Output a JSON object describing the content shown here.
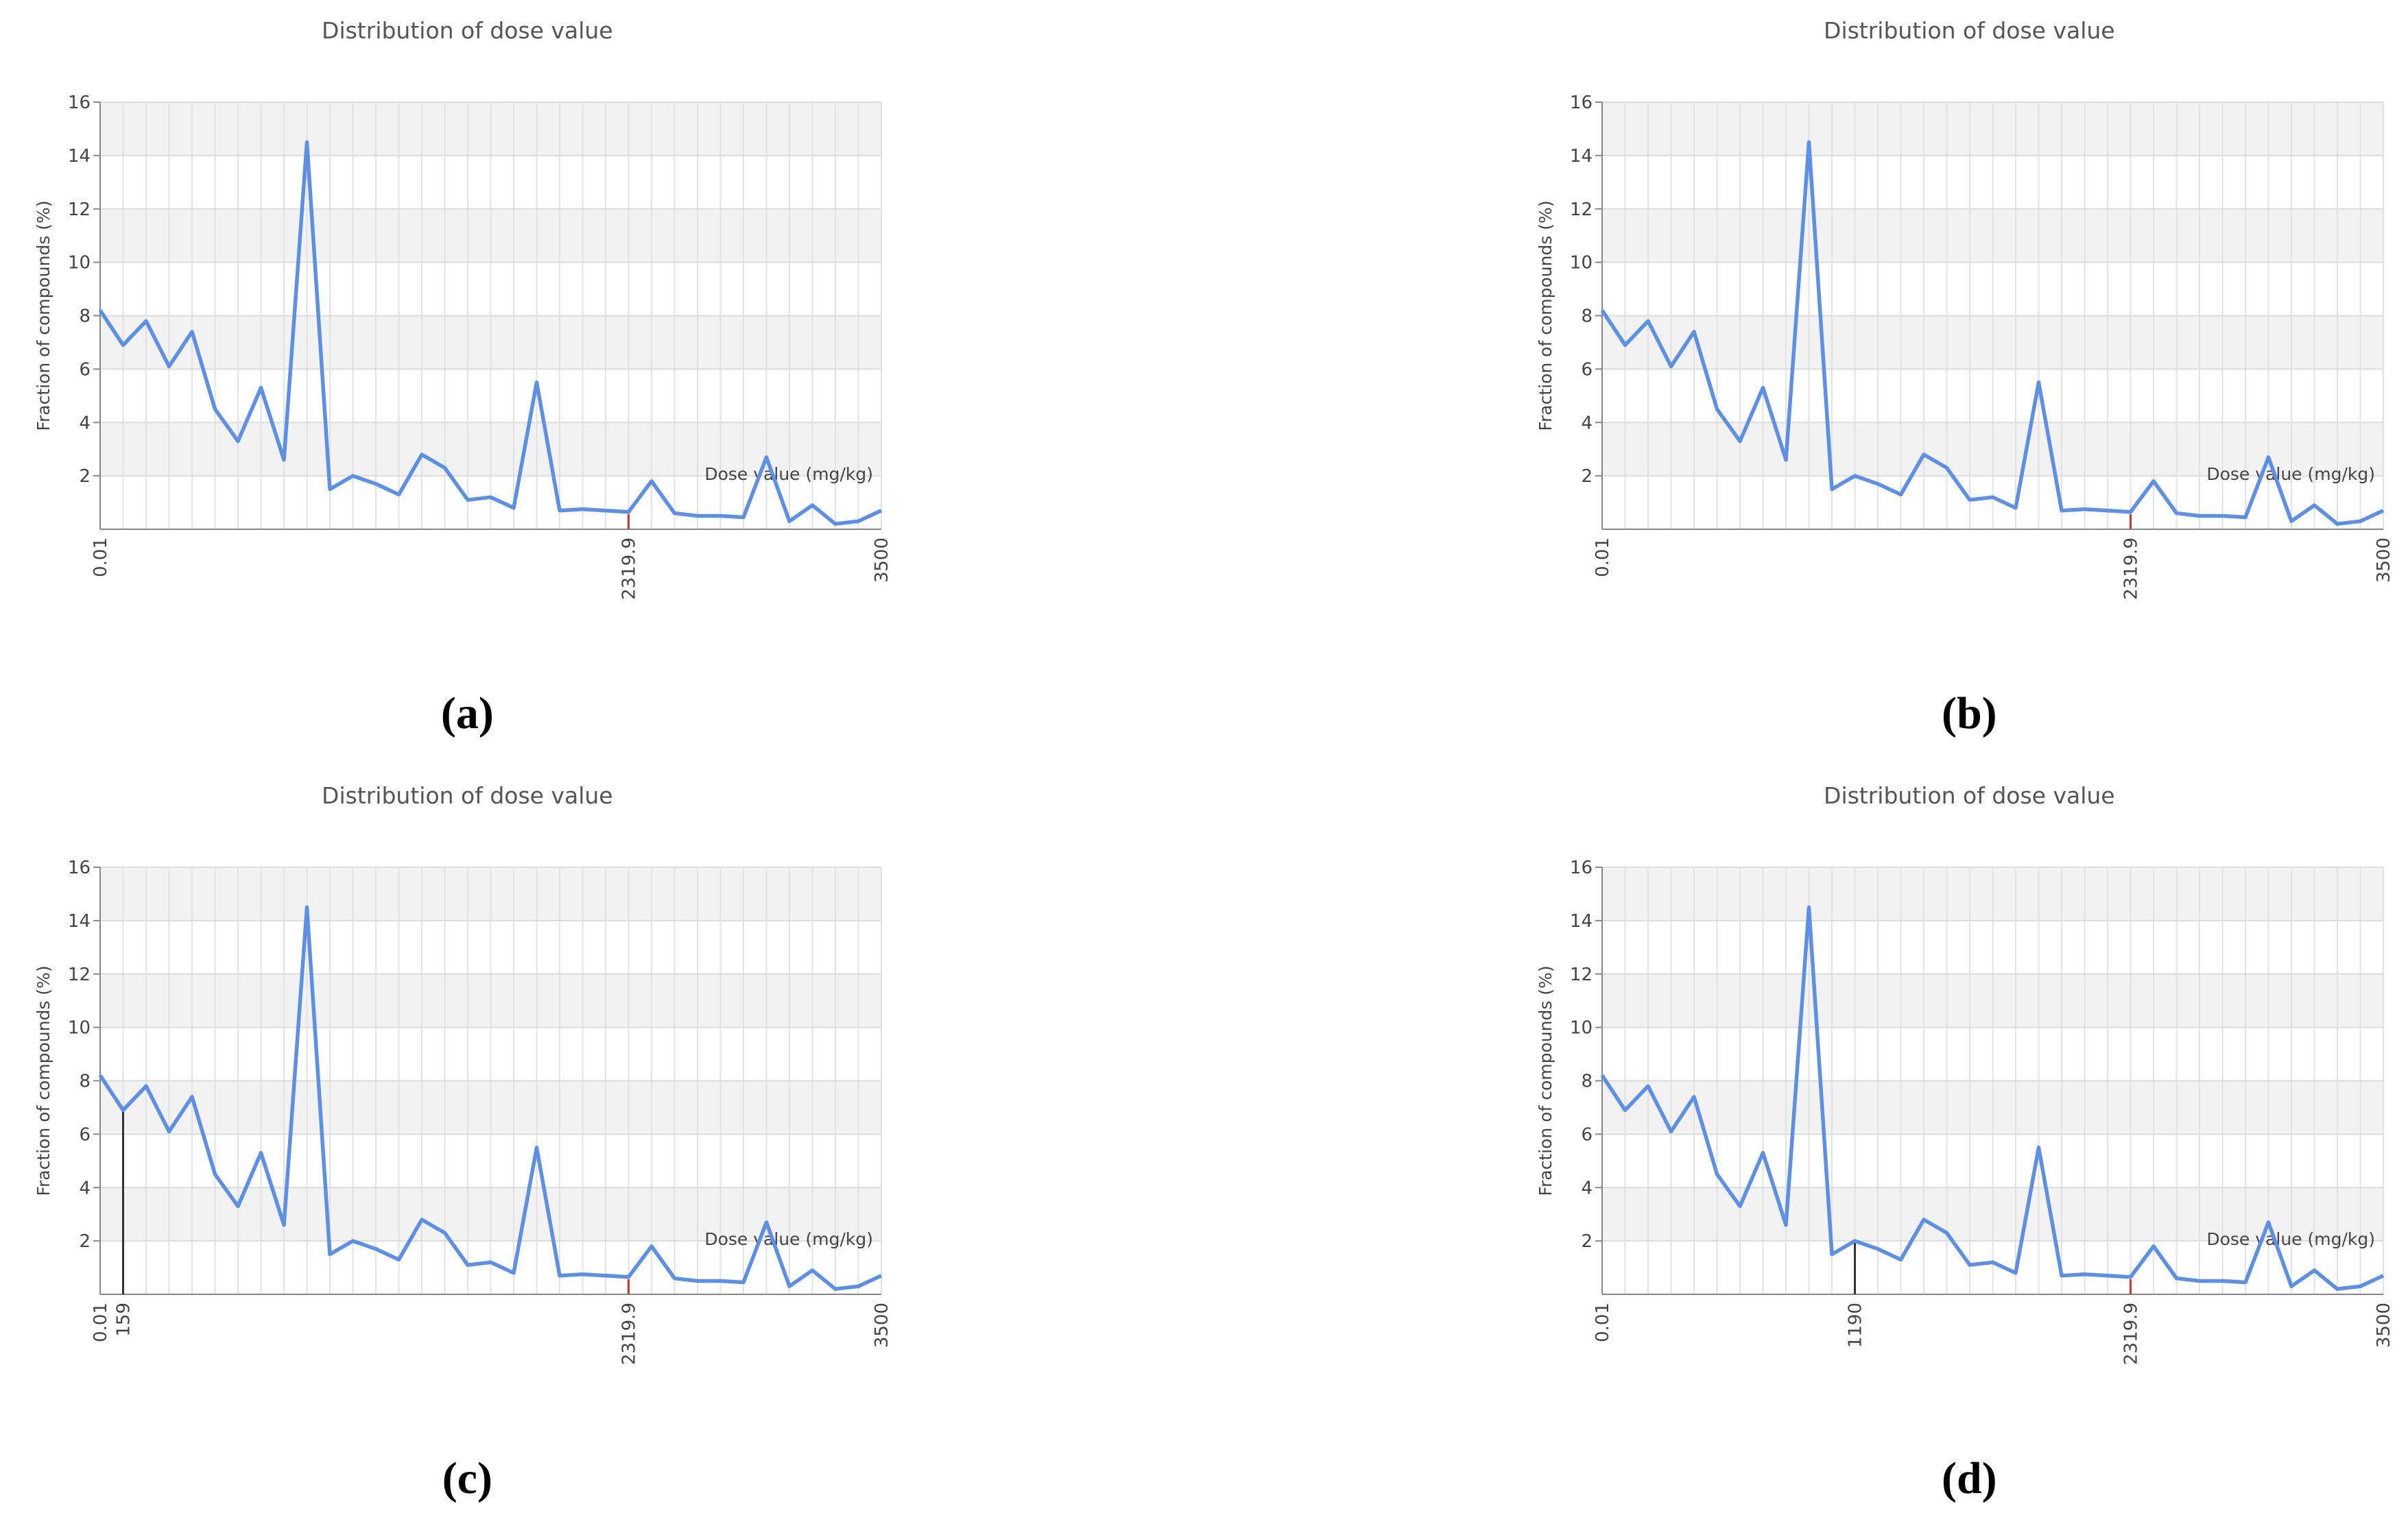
{
  "chart_data": [
    {
      "type": "line",
      "panel_label": "(a)",
      "title": "Distribution of dose value",
      "y_label": "Fraction of compounds (%)",
      "x_label": "Dose value (mg/kg)",
      "categories": [
        "0.01",
        null,
        null,
        null,
        null,
        null,
        null,
        null,
        null,
        null,
        null,
        null,
        null,
        null,
        null,
        null,
        null,
        null,
        null,
        null,
        null,
        null,
        null,
        "2319.9",
        null,
        null,
        null,
        null,
        null,
        null,
        null,
        null,
        null,
        null,
        "3500"
      ],
      "values": [
        8.2,
        6.9,
        7.8,
        6.1,
        7.4,
        4.5,
        3.3,
        5.3,
        2.6,
        14.5,
        1.5,
        2.0,
        1.7,
        1.3,
        2.8,
        2.3,
        1.1,
        1.2,
        0.8,
        5.5,
        0.7,
        0.75,
        0.7,
        0.65,
        1.8,
        0.6,
        0.5,
        0.5,
        0.45,
        2.7,
        0.3,
        0.9,
        0.2,
        0.3,
        0.7
      ],
      "color": "#5b8fe8",
      "ylim": [
        0,
        16
      ],
      "yticks": [
        2,
        4,
        6,
        8,
        10,
        12,
        14,
        16
      ],
      "grid": true,
      "reference": {
        "category": "2319.9",
        "color": "#e53030"
      }
    },
    {
      "type": "line",
      "panel_label": "(b)",
      "title": "Distribution of dose value",
      "y_label": "Fraction of compounds (%)",
      "x_label": "Dose value (mg/kg)",
      "categories": [
        "0.01",
        null,
        null,
        null,
        null,
        null,
        null,
        null,
        null,
        null,
        null,
        null,
        null,
        null,
        null,
        null,
        null,
        null,
        null,
        null,
        null,
        null,
        null,
        "2319.9",
        null,
        null,
        null,
        null,
        null,
        null,
        null,
        null,
        null,
        null,
        "3500"
      ],
      "values": [
        8.2,
        6.9,
        7.8,
        6.1,
        7.4,
        4.5,
        3.3,
        5.3,
        2.6,
        14.5,
        1.5,
        2.0,
        1.7,
        1.3,
        2.8,
        2.3,
        1.1,
        1.2,
        0.8,
        5.5,
        0.7,
        0.75,
        0.7,
        0.65,
        1.8,
        0.6,
        0.5,
        0.5,
        0.45,
        2.7,
        0.3,
        0.9,
        0.2,
        0.3,
        0.7
      ],
      "color": "#5b8fe8",
      "ylim": [
        0,
        16
      ],
      "yticks": [
        2,
        4,
        6,
        8,
        10,
        12,
        14,
        16
      ],
      "grid": true,
      "reference": {
        "category": "2319.9",
        "color": "#e53030"
      }
    },
    {
      "type": "line",
      "panel_label": "(c)",
      "title": "Distribution of dose value",
      "y_label": "Fraction of compounds (%)",
      "x_label": "Dose value (mg/kg)",
      "categories": [
        "0.01",
        "159",
        null,
        null,
        null,
        null,
        null,
        null,
        null,
        null,
        null,
        null,
        null,
        null,
        null,
        null,
        null,
        null,
        null,
        null,
        null,
        null,
        null,
        "2319.9",
        null,
        null,
        null,
        null,
        null,
        null,
        null,
        null,
        null,
        null,
        "3500"
      ],
      "values": [
        8.2,
        6.9,
        7.8,
        6.1,
        7.4,
        4.5,
        3.3,
        5.3,
        2.6,
        14.5,
        1.5,
        2.0,
        1.7,
        1.3,
        2.8,
        2.3,
        1.1,
        1.2,
        0.8,
        5.5,
        0.7,
        0.75,
        0.7,
        0.65,
        1.8,
        0.6,
        0.5,
        0.5,
        0.45,
        2.7,
        0.3,
        0.9,
        0.2,
        0.3,
        0.7
      ],
      "color": "#5b8fe8",
      "ylim": [
        0,
        16
      ],
      "yticks": [
        2,
        4,
        6,
        8,
        10,
        12,
        14,
        16
      ],
      "grid": true,
      "reference": {
        "category": "2319.9",
        "color": "#e53030"
      },
      "highlight": {
        "category": "159",
        "color": "#333333"
      }
    },
    {
      "type": "line",
      "panel_label": "(d)",
      "title": "Distribution of dose value",
      "y_label": "Fraction of compounds (%)",
      "x_label": "Dose value (mg/kg)",
      "categories": [
        "0.01",
        null,
        null,
        null,
        null,
        null,
        null,
        null,
        null,
        null,
        null,
        "1190",
        null,
        null,
        null,
        null,
        null,
        null,
        null,
        null,
        null,
        null,
        null,
        "2319.9",
        null,
        null,
        null,
        null,
        null,
        null,
        null,
        null,
        null,
        null,
        "3500"
      ],
      "values": [
        8.2,
        6.9,
        7.8,
        6.1,
        7.4,
        4.5,
        3.3,
        5.3,
        2.6,
        14.5,
        1.5,
        2.0,
        1.7,
        1.3,
        2.8,
        2.3,
        1.1,
        1.2,
        0.8,
        5.5,
        0.7,
        0.75,
        0.7,
        0.65,
        1.8,
        0.6,
        0.5,
        0.5,
        0.45,
        2.7,
        0.3,
        0.9,
        0.2,
        0.3,
        0.7
      ],
      "color": "#5b8fe8",
      "ylim": [
        0,
        16
      ],
      "yticks": [
        2,
        4,
        6,
        8,
        10,
        12,
        14,
        16
      ],
      "grid": true,
      "reference": {
        "category": "2319.9",
        "color": "#e53030"
      },
      "highlight": {
        "category": "1190",
        "color": "#333333"
      }
    }
  ]
}
